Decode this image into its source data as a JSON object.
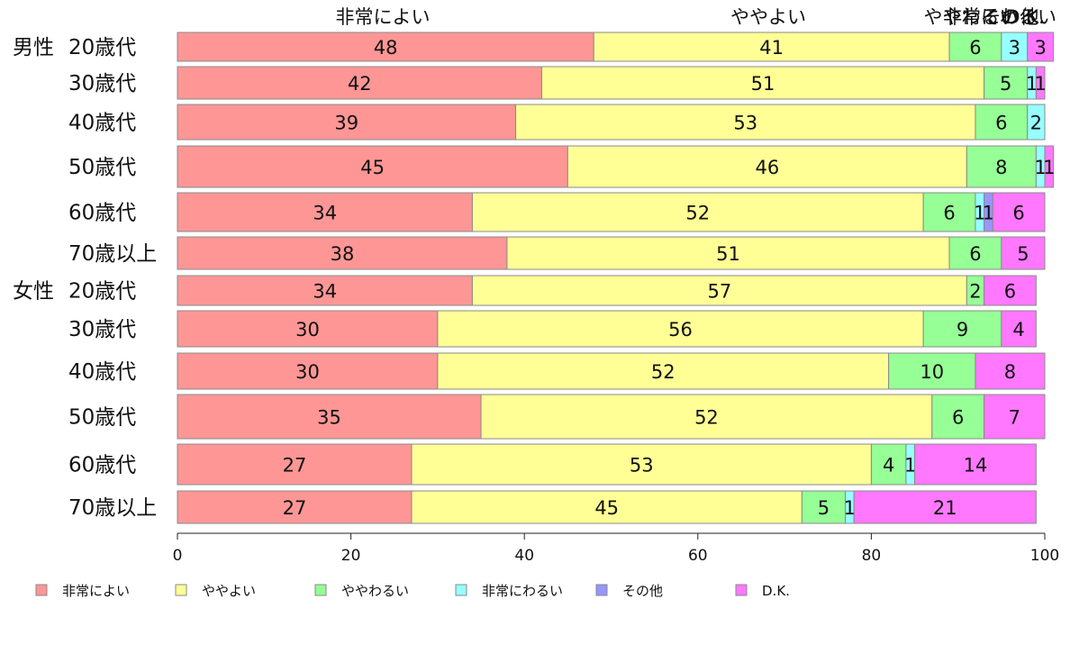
{
  "chart_data": {
    "type": "bar",
    "orientation": "horizontal",
    "stacked": true,
    "xlim": [
      0,
      100
    ],
    "x_ticks": [
      "0",
      "20",
      "40",
      "60",
      "80",
      "100"
    ],
    "grid": false,
    "legend_position": "bottom",
    "top_labels": [
      "非常によい",
      "ややよい",
      "ややわるい",
      "非常にわるい",
      "その他",
      "D.K."
    ],
    "series": [
      {
        "name": "非常によい",
        "color": "#ff9696"
      },
      {
        "name": "ややよい",
        "color": "#ffff96"
      },
      {
        "name": "ややわるい",
        "color": "#96ff96"
      },
      {
        "name": "非常にわるい",
        "color": "#96ffff"
      },
      {
        "name": "その他",
        "color": "#9696ff"
      },
      {
        "name": "D.K.",
        "color": "#ff78ff"
      }
    ],
    "rows": [
      {
        "group": "男性",
        "label": "20歳代",
        "values": [
          48,
          41,
          6,
          3,
          0,
          3
        ],
        "value_labels": [
          "48",
          "41",
          "6",
          "3",
          "",
          "3"
        ]
      },
      {
        "group": "",
        "label": "30歳代",
        "values": [
          42,
          51,
          5,
          1,
          0,
          1
        ],
        "value_labels": [
          "42",
          "51",
          "5",
          "1",
          "",
          "1"
        ]
      },
      {
        "group": "",
        "label": "40歳代",
        "values": [
          39,
          53,
          6,
          2,
          0,
          0
        ],
        "value_labels": [
          "39",
          "53",
          "6",
          "2",
          "",
          ""
        ]
      },
      {
        "group": "",
        "label": "50歳代",
        "values": [
          45,
          46,
          8,
          1,
          0,
          1
        ],
        "value_labels": [
          "45",
          "46",
          "8",
          "1",
          "",
          "1"
        ]
      },
      {
        "group": "",
        "label": "60歳代",
        "values": [
          34,
          52,
          6,
          1,
          1,
          6
        ],
        "value_labels": [
          "34",
          "52",
          "6",
          "1",
          "1",
          "6"
        ]
      },
      {
        "group": "",
        "label": "70歳以上",
        "values": [
          38,
          51,
          6,
          0,
          0,
          5
        ],
        "value_labels": [
          "38",
          "51",
          "6",
          "",
          "",
          "5"
        ]
      },
      {
        "group": "女性",
        "label": "20歳代",
        "values": [
          34,
          57,
          2,
          0,
          0,
          6
        ],
        "value_labels": [
          "34",
          "57",
          "2",
          "",
          "",
          "6"
        ]
      },
      {
        "group": "",
        "label": "30歳代",
        "values": [
          30,
          56,
          9,
          0,
          0,
          4
        ],
        "value_labels": [
          "30",
          "56",
          "9",
          "",
          "",
          "4"
        ]
      },
      {
        "group": "",
        "label": "40歳代",
        "values": [
          30,
          52,
          10,
          0,
          0,
          8
        ],
        "value_labels": [
          "30",
          "52",
          "10",
          "",
          "",
          "8"
        ]
      },
      {
        "group": "",
        "label": "50歳代",
        "values": [
          35,
          52,
          6,
          0,
          0,
          7
        ],
        "value_labels": [
          "35",
          "52",
          "6",
          "",
          "",
          "7"
        ]
      },
      {
        "group": "",
        "label": "60歳代",
        "values": [
          27,
          53,
          4,
          1,
          0,
          14
        ],
        "value_labels": [
          "27",
          "53",
          "4",
          "1",
          "",
          "14"
        ]
      },
      {
        "group": "",
        "label": "70歳以上",
        "values": [
          27,
          45,
          5,
          1,
          0,
          21
        ],
        "value_labels": [
          "27",
          "45",
          "5",
          "1",
          "",
          "21"
        ]
      }
    ]
  }
}
